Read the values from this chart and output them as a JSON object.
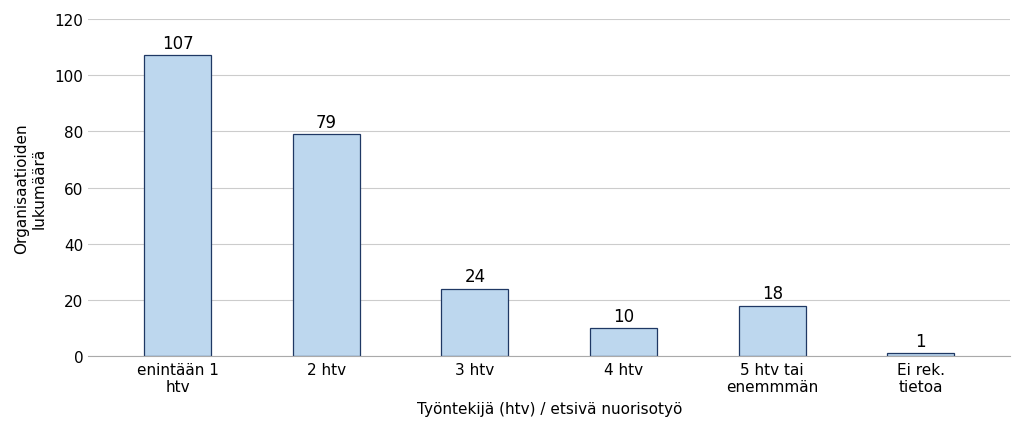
{
  "categories": [
    "enintään 1\nhtv",
    "2 htv",
    "3 htv",
    "4 htv",
    "5 htv tai\nenemmmän",
    "Ei rek.\ntietoa"
  ],
  "values": [
    107,
    79,
    24,
    10,
    18,
    1
  ],
  "bar_color": "#BDD7EE",
  "bar_edgecolor": "#1F3864",
  "title": "",
  "xlabel": "Työntekijä (htv) / etsivä nuorisotyö",
  "ylabel": "Organisaatioiden\nlukumäärä",
  "ylim": [
    0,
    120
  ],
  "yticks": [
    0,
    20,
    40,
    60,
    80,
    100,
    120
  ],
  "tick_fontsize": 11,
  "value_fontsize": 12,
  "xlabel_fontsize": 11,
  "ylabel_fontsize": 11,
  "background_color": "#ffffff",
  "grid_color": "#cccccc",
  "bar_width": 0.45
}
